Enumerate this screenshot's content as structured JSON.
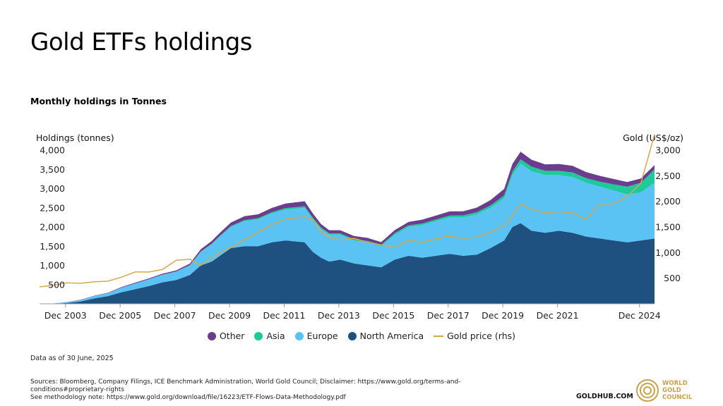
{
  "title": "Gold ETFs holdings",
  "subtitle": "Monthly holdings in Tonnes",
  "ylabel_left": "Holdings (tonnes)",
  "ylabel_right": "Gold (US$/oz)",
  "as_of": "Data as of 30 June, 2025",
  "sources_line1": "Sources: Bloomberg, Company Filings, ICE Benchmark Administration, World Gold Council; Disclaimer: https://www.gold.org/terms-and-conditions#proprietary-rights",
  "sources_line2": "See methodology note: https://www.gold.org/download/file/16223/ETF-Flows-Data-Methodology.pdf",
  "goldhub": "GOLDHUB.COM",
  "logo_line1": "WORLD",
  "logo_line2": "GOLD",
  "logo_line3": "COUNCIL",
  "colors": {
    "other": "#6a3d8f",
    "asia": "#1fc99a",
    "europe": "#5bc3f3",
    "north_america": "#1f5180",
    "gold_price": "#d4a84b"
  },
  "chart_data": {
    "type": "area",
    "stacked": true,
    "x_tick_labels": [
      "Dec 2003",
      "Dec 2005",
      "Dec 2007",
      "Dec 2009",
      "Dec 2011",
      "Dec 2013",
      "Dec 2015",
      "Dec 2017",
      "Dec 2019",
      "Dec 2021",
      "Dec 2024"
    ],
    "x_tick_years": [
      2003.95,
      2005.95,
      2007.95,
      2009.95,
      2011.95,
      2013.95,
      2015.95,
      2017.95,
      2019.95,
      2021.95,
      2024.95
    ],
    "xlim": [
      2003.0,
      2025.5
    ],
    "y_left_ticks": [
      "500",
      "1,000",
      "1,500",
      "2,000",
      "2,500",
      "3,000",
      "3,500",
      "4,000"
    ],
    "y_left_tick_values": [
      500,
      1000,
      1500,
      2000,
      2500,
      3000,
      3500,
      4000
    ],
    "y_left_lim": [
      0,
      4000
    ],
    "y_right_ticks": [
      "500",
      "1,000",
      "1,500",
      "2,000",
      "2,500",
      "3,000"
    ],
    "y_right_tick_values": [
      500,
      1000,
      1500,
      2000,
      2500,
      3000
    ],
    "y_right_lim": [
      0,
      3000
    ],
    "x": [
      2003.0,
      2003.5,
      2004.0,
      2004.5,
      2005.0,
      2005.5,
      2006.0,
      2006.5,
      2007.0,
      2007.5,
      2008.0,
      2008.5,
      2008.9,
      2009.3,
      2009.6,
      2010.0,
      2010.5,
      2011.0,
      2011.5,
      2012.0,
      2012.7,
      2013.0,
      2013.3,
      2013.6,
      2014.0,
      2014.5,
      2015.0,
      2015.5,
      2016.0,
      2016.5,
      2017.0,
      2017.5,
      2018.0,
      2018.5,
      2019.0,
      2019.5,
      2020.0,
      2020.3,
      2020.6,
      2021.0,
      2021.5,
      2022.0,
      2022.5,
      2023.0,
      2023.5,
      2024.0,
      2024.5,
      2025.0,
      2025.5
    ],
    "series": [
      {
        "name": "North America",
        "values": [
          0,
          5,
          20,
          60,
          140,
          200,
          300,
          380,
          460,
          560,
          620,
          750,
          1000,
          1100,
          1250,
          1450,
          1500,
          1500,
          1600,
          1650,
          1600,
          1350,
          1200,
          1100,
          1150,
          1050,
          1000,
          950,
          1150,
          1250,
          1200,
          1250,
          1300,
          1250,
          1280,
          1450,
          1650,
          2000,
          2100,
          1900,
          1850,
          1900,
          1850,
          1750,
          1700,
          1650,
          1600,
          1650,
          1700
        ]
      },
      {
        "name": "Europe",
        "values": [
          0,
          5,
          20,
          40,
          60,
          80,
          120,
          150,
          180,
          200,
          220,
          250,
          350,
          450,
          500,
          550,
          650,
          700,
          750,
          800,
          900,
          850,
          750,
          700,
          650,
          600,
          600,
          550,
          650,
          750,
          850,
          900,
          950,
          1000,
          1050,
          1050,
          1100,
          1350,
          1550,
          1550,
          1500,
          1450,
          1450,
          1400,
          1350,
          1300,
          1250,
          1250,
          1450
        ]
      },
      {
        "name": "Asia",
        "values": [
          0,
          0,
          0,
          0,
          0,
          0,
          0,
          0,
          0,
          0,
          0,
          5,
          10,
          15,
          20,
          25,
          30,
          30,
          35,
          40,
          40,
          40,
          35,
          35,
          35,
          35,
          35,
          35,
          40,
          40,
          40,
          45,
          45,
          50,
          55,
          60,
          70,
          90,
          110,
          120,
          110,
          110,
          120,
          120,
          130,
          160,
          200,
          250,
          350
        ]
      },
      {
        "name": "Other",
        "values": [
          0,
          0,
          5,
          5,
          10,
          10,
          15,
          20,
          20,
          25,
          30,
          40,
          60,
          70,
          80,
          90,
          100,
          100,
          110,
          120,
          130,
          110,
          90,
          80,
          80,
          80,
          80,
          70,
          80,
          90,
          100,
          100,
          110,
          110,
          120,
          140,
          170,
          200,
          200,
          180,
          170,
          180,
          170,
          160,
          150,
          140,
          120,
          110,
          110
        ]
      }
    ],
    "line_series": {
      "name": "Gold price (rhs)",
      "axis": "right",
      "values": [
        330,
        360,
        410,
        400,
        430,
        440,
        520,
        620,
        620,
        670,
        850,
        870,
        750,
        900,
        1000,
        1100,
        1250,
        1400,
        1550,
        1650,
        1700,
        1650,
        1400,
        1300,
        1250,
        1280,
        1200,
        1150,
        1100,
        1250,
        1200,
        1270,
        1320,
        1280,
        1300,
        1400,
        1530,
        1720,
        1950,
        1850,
        1780,
        1800,
        1780,
        1650,
        1950,
        1950,
        2100,
        2350,
        3300
      ]
    },
    "legend_position": "bottom",
    "grid": false
  },
  "legend": [
    {
      "label": "Other",
      "kind": "dot",
      "color": "#6a3d8f"
    },
    {
      "label": "Asia",
      "kind": "dot",
      "color": "#1fc99a"
    },
    {
      "label": "Europe",
      "kind": "dot",
      "color": "#5bc3f3"
    },
    {
      "label": "North America",
      "kind": "dot",
      "color": "#1f5180"
    },
    {
      "label": "Gold price (rhs)",
      "kind": "line",
      "color": "#d4a84b"
    }
  ]
}
